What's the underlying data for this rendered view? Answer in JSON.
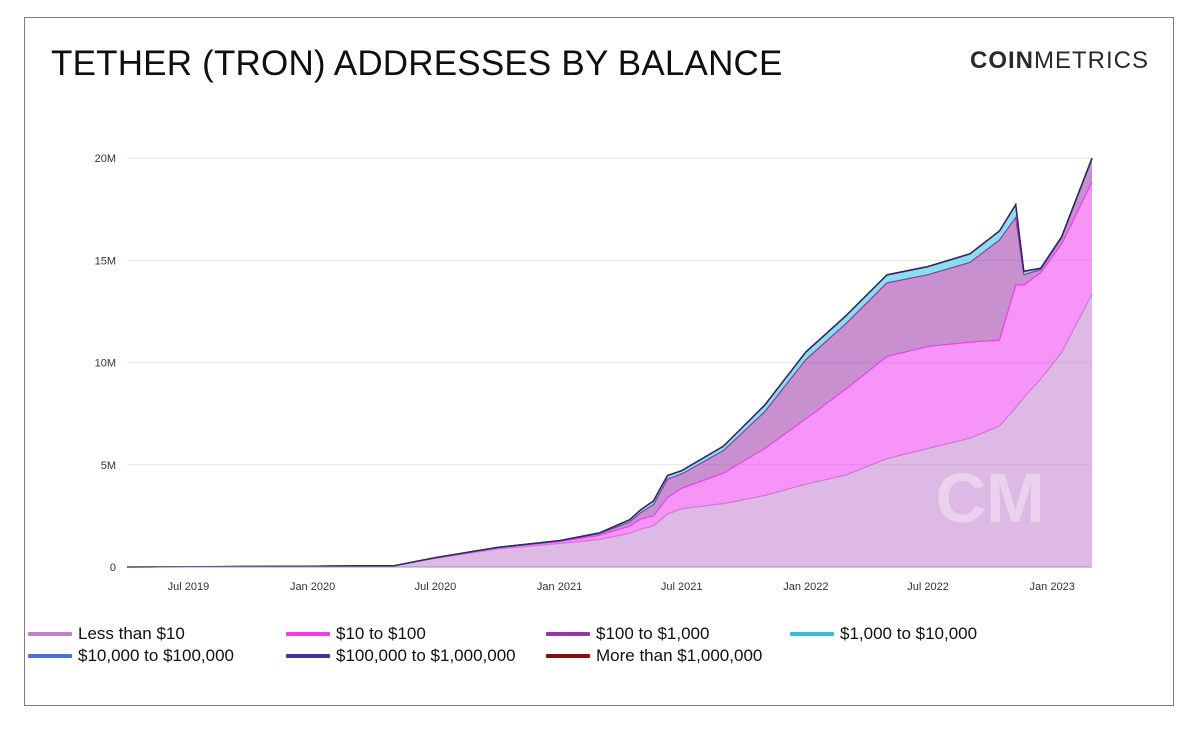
{
  "title": "TETHER (TRON) ADDRESSES BY BALANCE",
  "brand": {
    "strong": "COIN",
    "light": "METRICS",
    "watermark": "CM"
  },
  "chart_data": {
    "type": "area",
    "stacked": true,
    "title": "TETHER (TRON) ADDRESSES BY BALANCE",
    "ylim": [
      0,
      20500000
    ],
    "yticks": [
      {
        "value": 0,
        "label": "0"
      },
      {
        "value": 5000000,
        "label": "5M"
      },
      {
        "value": 10000000,
        "label": "10M"
      },
      {
        "value": 15000000,
        "label": "15M"
      },
      {
        "value": 20000000,
        "label": "20M"
      }
    ],
    "xlim": [
      "2019-04-01",
      "2023-03-01"
    ],
    "xticks": [
      {
        "date": "2019-07-01",
        "label": "Jul 2019"
      },
      {
        "date": "2020-01-01",
        "label": "Jan 2020"
      },
      {
        "date": "2020-07-01",
        "label": "Jul 2020"
      },
      {
        "date": "2021-01-01",
        "label": "Jan 2021"
      },
      {
        "date": "2021-07-01",
        "label": "Jul 2021"
      },
      {
        "date": "2022-01-01",
        "label": "Jan 2022"
      },
      {
        "date": "2022-07-01",
        "label": "Jul 2022"
      },
      {
        "date": "2023-01-01",
        "label": "Jan 2023"
      }
    ],
    "x": [
      "2019-04-01",
      "2019-10-01",
      "2020-05-01",
      "2020-07-01",
      "2020-10-01",
      "2021-01-01",
      "2021-03-01",
      "2021-04-15",
      "2021-05-01",
      "2021-05-20",
      "2021-06-10",
      "2021-07-01",
      "2021-09-01",
      "2021-11-01",
      "2022-01-01",
      "2022-03-01",
      "2022-05-01",
      "2022-07-01",
      "2022-09-01",
      "2022-10-15",
      "2022-11-08",
      "2022-11-20",
      "2022-12-15",
      "2023-01-15",
      "2023-03-01"
    ],
    "series": [
      {
        "name": "Less than $10",
        "color": "#c47fcf",
        "values": [
          0,
          20000,
          60000,
          420000,
          880000,
          1150000,
          1350000,
          1650000,
          1850000,
          2000000,
          2600000,
          2850000,
          3100000,
          3500000,
          4050000,
          4500000,
          5300000,
          5800000,
          6300000,
          6900000,
          7800000,
          8300000,
          9200000,
          10500000,
          13350000
        ]
      },
      {
        "name": "$10 to $100",
        "color": "#f03cf0",
        "values": [
          0,
          5000,
          5000,
          30000,
          60000,
          100000,
          200000,
          350000,
          500000,
          500000,
          800000,
          1000000,
          1500000,
          2300000,
          3200000,
          4200000,
          5000000,
          5000000,
          4700000,
          4200000,
          6000000,
          5500000,
          5200000,
          5300000,
          5500000
        ]
      },
      {
        "name": "$100 to $1,000",
        "color": "#9a35a8",
        "values": [
          0,
          0,
          0,
          10000,
          20000,
          30000,
          80000,
          200000,
          300000,
          550000,
          900000,
          700000,
          1100000,
          1800000,
          2900000,
          3200000,
          3600000,
          3500000,
          3900000,
          4900000,
          3300000,
          500000,
          150000,
          300000,
          1100000
        ]
      },
      {
        "name": "$1,000 to $10,000",
        "color": "#31c2d9",
        "values": [
          0,
          0,
          0,
          0,
          0,
          5000,
          30000,
          100000,
          130000,
          170000,
          160000,
          150000,
          200000,
          300000,
          350000,
          360000,
          370000,
          380000,
          400000,
          420000,
          600000,
          150000,
          50000,
          40000,
          40000
        ]
      },
      {
        "name": "$10,000 to $100,000",
        "color": "#4a6fd9",
        "values": [
          0,
          0,
          0,
          0,
          0,
          3000,
          5000,
          10000,
          10000,
          10000,
          10000,
          10000,
          10000,
          12000,
          15000,
          15000,
          15000,
          15000,
          15000,
          15000,
          20000,
          15000,
          10000,
          10000,
          10000
        ]
      },
      {
        "name": "$100,000 to $1,000,000",
        "color": "#3a3699",
        "values": [
          0,
          0,
          0,
          0,
          0,
          2000,
          3000,
          5000,
          5000,
          5000,
          5000,
          5000,
          5000,
          6000,
          8000,
          8000,
          8000,
          8000,
          8000,
          8000,
          10000,
          8000,
          6000,
          6000,
          6000
        ]
      },
      {
        "name": "More than $1,000,000",
        "color": "#8b0a0a",
        "values": [
          0,
          0,
          0,
          0,
          0,
          500,
          1000,
          1000,
          1000,
          1000,
          1000,
          1000,
          1000,
          1000,
          1000,
          1000,
          1000,
          1000,
          1000,
          1000,
          1000,
          1000,
          1000,
          1000,
          1000
        ]
      }
    ],
    "legend": {
      "placement": "bottom-left"
    }
  }
}
